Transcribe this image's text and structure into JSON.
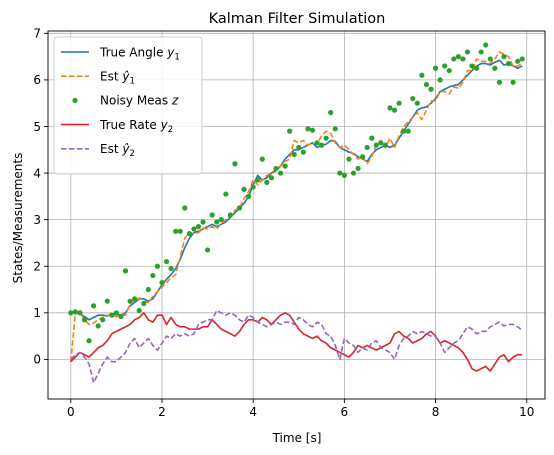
{
  "chart_data": {
    "type": "line",
    "title": "Kalman Filter Simulation",
    "xlabel": "Time [s]",
    "ylabel": "States/Measurements",
    "xlim": [
      -0.5,
      10.4
    ],
    "ylim": [
      -0.85,
      7.05
    ],
    "xticks": [
      0,
      2,
      4,
      6,
      8,
      10
    ],
    "yticks": [
      0,
      1,
      2,
      3,
      4,
      5,
      6,
      7
    ],
    "grid": true,
    "legend_position": "top-left",
    "legend": [
      {
        "base": "True Angle ",
        "var": "y",
        "hat": false,
        "sub": "1"
      },
      {
        "base": "Est ",
        "var": "y",
        "hat": true,
        "sub": "1"
      },
      {
        "base": "Noisy Meas ",
        "var": "z",
        "hat": false,
        "sub": ""
      },
      {
        "base": "True Rate ",
        "var": "y",
        "hat": false,
        "sub": "2"
      },
      {
        "base": "Est ",
        "var": "y",
        "hat": true,
        "sub": "2"
      }
    ],
    "x": [
      0.0,
      0.1,
      0.2,
      0.3,
      0.4,
      0.5,
      0.6,
      0.7,
      0.8,
      0.9,
      1.0,
      1.1,
      1.2,
      1.3,
      1.4,
      1.5,
      1.6,
      1.7,
      1.8,
      1.9,
      2.0,
      2.1,
      2.2,
      2.3,
      2.4,
      2.5,
      2.6,
      2.7,
      2.8,
      2.9,
      3.0,
      3.1,
      3.2,
      3.3,
      3.4,
      3.5,
      3.6,
      3.7,
      3.8,
      3.9,
      4.0,
      4.1,
      4.2,
      4.3,
      4.4,
      4.5,
      4.6,
      4.7,
      4.8,
      4.9,
      5.0,
      5.1,
      5.2,
      5.3,
      5.4,
      5.5,
      5.6,
      5.7,
      5.8,
      5.9,
      6.0,
      6.1,
      6.2,
      6.3,
      6.4,
      6.5,
      6.6,
      6.7,
      6.8,
      6.9,
      7.0,
      7.1,
      7.2,
      7.3,
      7.4,
      7.5,
      7.6,
      7.7,
      7.8,
      7.9,
      8.0,
      8.1,
      8.2,
      8.3,
      8.4,
      8.5,
      8.6,
      8.7,
      8.8,
      8.9,
      9.0,
      9.1,
      9.2,
      9.3,
      9.4,
      9.5,
      9.6,
      9.7,
      9.8,
      9.9
    ],
    "series": [
      {
        "name": "True Angle y1",
        "style": "solid",
        "color": "#1f77b4",
        "values": [
          1.0,
          1.0,
          0.98,
          0.92,
          0.85,
          0.9,
          0.95,
          0.95,
          0.93,
          0.98,
          0.97,
          0.95,
          1.0,
          1.15,
          1.22,
          1.3,
          1.3,
          1.25,
          1.3,
          1.45,
          1.6,
          1.72,
          1.82,
          1.95,
          2.15,
          2.4,
          2.6,
          2.72,
          2.75,
          2.8,
          2.85,
          2.9,
          2.85,
          2.9,
          2.95,
          3.05,
          3.15,
          3.25,
          3.35,
          3.5,
          3.75,
          3.95,
          3.85,
          3.9,
          4.0,
          4.05,
          4.15,
          4.3,
          4.4,
          4.5,
          4.5,
          4.55,
          4.6,
          4.65,
          4.55,
          4.6,
          4.62,
          4.7,
          4.68,
          4.55,
          4.5,
          4.45,
          4.42,
          4.35,
          4.3,
          4.25,
          4.4,
          4.5,
          4.55,
          4.6,
          4.55,
          4.6,
          4.75,
          4.9,
          5.05,
          5.2,
          5.35,
          5.4,
          5.42,
          5.5,
          5.6,
          5.75,
          5.8,
          5.85,
          5.88,
          5.9,
          6.0,
          6.1,
          6.2,
          6.3,
          6.35,
          6.35,
          6.32,
          6.38,
          6.42,
          6.32,
          6.35,
          6.3,
          6.25,
          6.3
        ]
      },
      {
        "name": "Est ŷ1",
        "style": "dashed",
        "color": "#ff7f0e",
        "values": [
          -0.05,
          1.0,
          1.0,
          0.85,
          0.75,
          0.78,
          0.85,
          0.9,
          0.95,
          0.95,
          0.92,
          0.95,
          0.95,
          1.18,
          1.25,
          1.32,
          1.25,
          1.22,
          1.35,
          1.45,
          1.55,
          1.65,
          1.75,
          1.82,
          2.2,
          2.6,
          2.72,
          2.7,
          2.72,
          2.82,
          2.8,
          2.85,
          2.8,
          2.92,
          3.0,
          3.1,
          3.2,
          3.25,
          3.45,
          3.6,
          3.85,
          3.75,
          3.85,
          3.95,
          4.0,
          4.1,
          4.15,
          4.25,
          4.3,
          4.7,
          4.65,
          4.7,
          4.6,
          4.65,
          4.62,
          4.8,
          4.9,
          4.85,
          4.65,
          4.55,
          4.6,
          4.5,
          4.4,
          4.3,
          4.35,
          4.2,
          4.35,
          4.6,
          4.7,
          4.55,
          4.75,
          4.55,
          4.8,
          5.0,
          5.1,
          5.2,
          5.3,
          5.15,
          5.35,
          5.55,
          5.55,
          5.75,
          5.75,
          5.7,
          5.85,
          5.82,
          5.95,
          6.2,
          6.2,
          6.45,
          6.4,
          6.4,
          6.35,
          6.45,
          6.6,
          6.55,
          6.5,
          6.3,
          6.3,
          6.35
        ]
      },
      {
        "name": "Noisy Meas z",
        "style": "points",
        "color": "#2ca02c",
        "values": [
          1.0,
          1.02,
          1.0,
          0.85,
          0.4,
          1.15,
          0.72,
          0.85,
          1.25,
          0.95,
          1.0,
          0.92,
          1.9,
          1.25,
          1.3,
          1.05,
          1.2,
          1.5,
          1.8,
          2.0,
          1.65,
          2.1,
          1.95,
          2.75,
          2.75,
          3.25,
          2.7,
          2.8,
          2.85,
          2.95,
          2.35,
          3.1,
          2.95,
          3.0,
          3.55,
          3.1,
          4.2,
          3.25,
          3.65,
          3.5,
          3.7,
          3.85,
          4.3,
          3.8,
          3.9,
          4.1,
          4.0,
          4.15,
          4.9,
          4.4,
          4.55,
          4.45,
          4.95,
          4.92,
          4.65,
          4.6,
          4.75,
          5.3,
          4.95,
          4.0,
          3.95,
          4.3,
          4.0,
          4.1,
          4.35,
          4.55,
          4.75,
          4.6,
          4.65,
          4.6,
          5.4,
          5.35,
          5.5,
          4.9,
          4.9,
          5.6,
          5.5,
          6.1,
          5.9,
          5.8,
          6.25,
          6.0,
          6.3,
          6.2,
          6.45,
          6.5,
          6.45,
          6.6,
          6.3,
          6.25,
          6.6,
          6.75,
          6.45,
          6.25,
          5.95,
          6.5,
          6.35,
          5.95,
          6.4,
          6.45
        ]
      },
      {
        "name": "True Rate y2",
        "style": "solid",
        "color": "#d62728",
        "values": [
          -0.05,
          0.05,
          0.15,
          0.1,
          0.05,
          0.15,
          0.25,
          0.3,
          0.4,
          0.55,
          0.6,
          0.65,
          0.7,
          0.75,
          0.85,
          0.9,
          1.0,
          0.85,
          0.8,
          0.95,
          0.95,
          0.75,
          0.9,
          0.75,
          0.7,
          0.7,
          0.65,
          0.65,
          0.65,
          0.7,
          0.7,
          0.85,
          0.75,
          0.65,
          0.6,
          0.55,
          0.5,
          0.6,
          0.75,
          0.85,
          0.85,
          0.8,
          0.9,
          0.85,
          0.75,
          0.85,
          0.95,
          1.0,
          0.95,
          0.8,
          0.65,
          0.55,
          0.5,
          0.45,
          0.5,
          0.4,
          0.35,
          0.25,
          0.2,
          0.15,
          0.1,
          0.05,
          0.15,
          0.3,
          0.25,
          0.3,
          0.25,
          0.2,
          0.25,
          0.3,
          0.35,
          0.55,
          0.6,
          0.5,
          0.45,
          0.35,
          0.4,
          0.45,
          0.55,
          0.6,
          0.5,
          0.35,
          0.4,
          0.35,
          0.3,
          0.25,
          0.15,
          0.0,
          -0.2,
          -0.25,
          -0.2,
          -0.15,
          -0.25,
          -0.1,
          0.05,
          0.1,
          -0.05,
          0.05,
          0.1,
          0.1
        ]
      },
      {
        "name": "Est ŷ2",
        "style": "dashed",
        "color": "#9467bd",
        "values": [
          0.0,
          0.1,
          0.15,
          0.05,
          -0.1,
          -0.5,
          -0.3,
          -0.1,
          0.05,
          -0.05,
          -0.05,
          0.05,
          0.15,
          0.35,
          0.45,
          0.25,
          0.35,
          0.45,
          0.3,
          0.2,
          0.35,
          0.5,
          0.45,
          0.55,
          0.5,
          0.55,
          0.5,
          0.55,
          0.75,
          0.8,
          0.85,
          0.85,
          1.05,
          1.0,
          0.95,
          1.0,
          0.95,
          0.85,
          0.8,
          0.95,
          0.9,
          0.8,
          0.75,
          0.7,
          0.75,
          0.8,
          0.75,
          0.8,
          0.8,
          0.75,
          0.9,
          0.85,
          0.75,
          0.7,
          0.8,
          0.75,
          0.55,
          0.5,
          0.3,
          0.0,
          0.45,
          0.35,
          0.3,
          0.15,
          0.25,
          0.2,
          0.35,
          0.4,
          0.25,
          0.2,
          0.15,
          0.0,
          0.3,
          0.45,
          0.5,
          0.6,
          0.55,
          0.6,
          0.55,
          0.5,
          0.5,
          0.35,
          0.15,
          0.25,
          0.35,
          0.4,
          0.55,
          0.7,
          0.65,
          0.55,
          0.6,
          0.6,
          0.7,
          0.75,
          0.8,
          0.72,
          0.75,
          0.75,
          0.7,
          0.62
        ]
      }
    ]
  }
}
